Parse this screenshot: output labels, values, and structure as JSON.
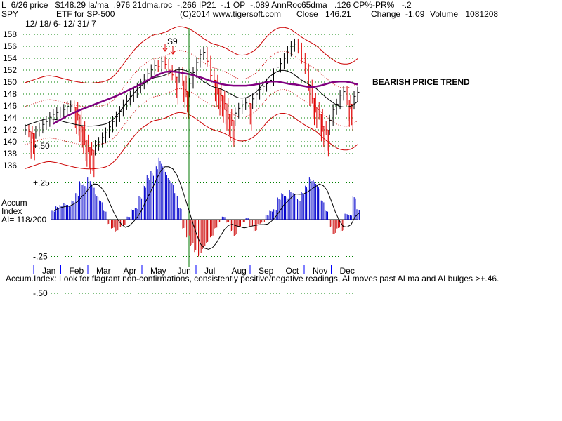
{
  "header": {
    "line1": "L=6/26  price= $148.29  la/ma=.976 21dma.roc=-.266 IP21=-.1 OP=-.089 AnnRoc65dma= .126 CP%-PR%= -.2",
    "symbol": "SPY",
    "subtitle": "ETF for SP-500",
    "copyright": "(C)2014 www.tigersoft.com",
    "close": "Close=  146.21",
    "change": "Change=-1.09",
    "volume": "Volume= 1081208",
    "date_range": "12/ 18/ 6- 12/ 31/ 7"
  },
  "annotations": {
    "signal": "S9",
    "trend": "BEARISH PRICE TREND"
  },
  "indicator": {
    "label1": "Accum",
    "label2": "Index",
    "label3": "AI= 118/200",
    "footer": "Accum.Index: Look for flagrant non-confirmations, consistently positive/negative readings, AI moves past AI ma and AI bulges >+.46."
  },
  "colors": {
    "up_bar": "#000000",
    "down_bar": "#e00000",
    "ma50": "#800080",
    "band": "#cc0000",
    "vline": "#007a00",
    "accum_pos": "#0000cc",
    "accum_neg": "#cc0000",
    "grid": "#008000",
    "month_tick": "#0000ff"
  },
  "chart_data": {
    "type": "line",
    "price_axis": {
      "ticks": [
        "158",
        "156",
        "154",
        "152",
        "150",
        "148",
        "146",
        "144",
        "142",
        "140",
        "138",
        "136"
      ],
      "ylim": [
        136,
        159
      ]
    },
    "accum_axis": {
      "ticks": [
        "+.50",
        "+.25",
        "-.25",
        "-.50"
      ],
      "ylim": [
        -0.55,
        0.55
      ]
    },
    "months": [
      "Jan",
      "Feb",
      "Mar",
      "Apr",
      "May",
      "Jun",
      "Jul",
      "Aug",
      "Sep",
      "Oct",
      "Nov",
      "Dec"
    ],
    "series": [
      {
        "kind": "close",
        "values": [
          142.0,
          141.7,
          141.4,
          141.8,
          142.3,
          142.9,
          143.4,
          144.1,
          144.6,
          144.9,
          145.0,
          145.4,
          145.9,
          146.0,
          145.8,
          144.5,
          142.5,
          140.3,
          139.1,
          138.6,
          139.4,
          139.9,
          140.7,
          141.5,
          142.5,
          143.4,
          144.2,
          145.1,
          146.2,
          147.0,
          147.6,
          148.2,
          149.0,
          149.7,
          150.5,
          151.4,
          152.1,
          152.8,
          152.6,
          153.4,
          153.0,
          152.0,
          151.2,
          150.8,
          151.6,
          150.2,
          148.4,
          149.8,
          151.6,
          153.3,
          154.6,
          155.0,
          153.5,
          151.1,
          150.3,
          148.9,
          147.7,
          146.4,
          144.6,
          143.6,
          144.8,
          145.6,
          146.2,
          146.5,
          146.4,
          147.2,
          148.0,
          148.8,
          149.3,
          149.7,
          150.3,
          151.4,
          152.5,
          153.1,
          154.0,
          155.2,
          156.0,
          156.4,
          155.7,
          154.0,
          152.2,
          149.5,
          147.3,
          145.8,
          144.6,
          142.6,
          142.0,
          143.6,
          145.4,
          146.3,
          147.8,
          148.4,
          147.0,
          146.3,
          147.6,
          148.3
        ]
      },
      {
        "kind": "ma50",
        "values": [
          143.0,
          143.6,
          144.2,
          144.7,
          145.2,
          145.6,
          146.0,
          146.4,
          146.8,
          147.2,
          147.6,
          148.1,
          148.6,
          149.1,
          149.6,
          150.2,
          150.8,
          151.3,
          151.7,
          151.8,
          151.7,
          151.5,
          151.3,
          151.0,
          150.7,
          150.3,
          150.0,
          149.7,
          149.5,
          149.4,
          149.4,
          149.4,
          149.5,
          149.7,
          149.9,
          150.1,
          150.1,
          149.9,
          149.7,
          149.6,
          149.4,
          149.2,
          149.2,
          149.4,
          149.7,
          150.0,
          150.1,
          150.1,
          149.9,
          149.6
        ]
      }
    ],
    "accum_values": [
      0.06,
      0.09,
      0.1,
      0.11,
      0.1,
      0.13,
      0.18,
      0.26,
      0.24,
      0.29,
      0.24,
      0.17,
      0.13,
      0.06,
      -0.03,
      -0.06,
      -0.08,
      -0.05,
      -0.04,
      0.02,
      0.07,
      0.08,
      0.16,
      0.24,
      0.3,
      0.33,
      0.38,
      0.42,
      0.36,
      0.3,
      0.26,
      0.18,
      0.08,
      -0.06,
      -0.12,
      -0.18,
      -0.22,
      -0.25,
      -0.2,
      -0.16,
      -0.12,
      -0.06,
      -0.02,
      0.02,
      -0.02,
      -0.08,
      -0.11,
      -0.05,
      -0.02,
      0.01,
      -0.05,
      -0.08,
      -0.03,
      -0.02,
      0.03,
      0.06,
      0.07,
      0.15,
      0.18,
      0.16,
      0.2,
      0.18,
      0.14,
      0.19,
      0.23,
      0.29,
      0.27,
      0.23,
      0.13,
      0.06,
      -0.05,
      -0.1,
      -0.06,
      -0.08,
      0.04,
      0.03,
      0.16,
      0.07
    ]
  }
}
